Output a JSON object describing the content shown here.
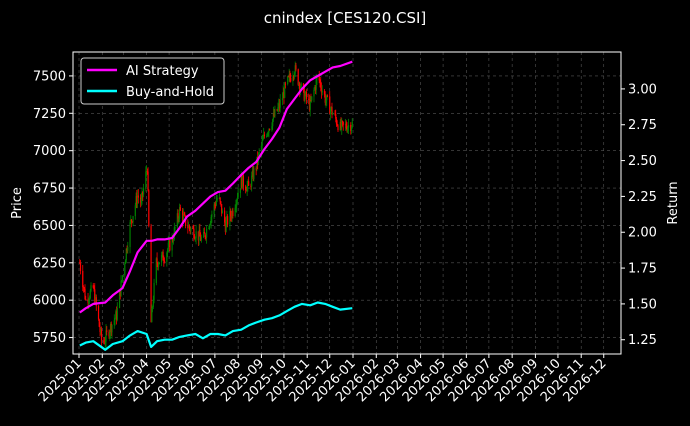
{
  "chart_data": {
    "type": "line",
    "title": "cnindex [CES120.CSI]",
    "ylabel_left": "Price",
    "ylabel_right": "Return",
    "xlabel": "",
    "ylim_left": [
      5640,
      7660
    ],
    "ylim_right": [
      1.1505,
      3.2575
    ],
    "xlim": [
      "2024-12-24",
      "2026-12-24"
    ],
    "x_ticks": [
      "2025-01",
      "2025-02",
      "2025-03",
      "2025-04",
      "2025-05",
      "2025-06",
      "2025-07",
      "2025-08",
      "2025-09",
      "2025-10",
      "2025-11",
      "2025-12",
      "2026-01",
      "2026-02",
      "2026-03",
      "2026-04",
      "2026-05",
      "2026-06",
      "2026-07",
      "2026-08",
      "2026-09",
      "2026-10",
      "2026-11",
      "2026-12"
    ],
    "y_ticks_left": [
      5750,
      6000,
      6250,
      6500,
      6750,
      7000,
      7250,
      7500
    ],
    "y_ticks_right": [
      1.25,
      1.5,
      1.75,
      2.0,
      2.25,
      2.5,
      2.75,
      3.0
    ],
    "grid": true,
    "legend_position": "top-left",
    "colors": {
      "background": "#000000",
      "ai_strategy": "#ff00ff",
      "buy_and_hold": "#00ffff",
      "candle_up": "#008000",
      "candle_down": "#ff0000",
      "grid": "#555555"
    },
    "series": [
      {
        "name": "AI Strategy",
        "axis": "right",
        "points": [
          [
            "2025-01-02",
            1.44
          ],
          [
            "2025-01-10",
            1.47
          ],
          [
            "2025-01-20",
            1.5
          ],
          [
            "2025-02-05",
            1.51
          ],
          [
            "2025-02-15",
            1.56
          ],
          [
            "2025-02-28",
            1.61
          ],
          [
            "2025-03-10",
            1.73
          ],
          [
            "2025-03-20",
            1.86
          ],
          [
            "2025-04-01",
            1.94
          ],
          [
            "2025-04-08",
            1.94
          ],
          [
            "2025-04-15",
            1.95
          ],
          [
            "2025-04-25",
            1.95
          ],
          [
            "2025-05-05",
            1.96
          ],
          [
            "2025-05-15",
            2.03
          ],
          [
            "2025-05-25",
            2.11
          ],
          [
            "2025-06-05",
            2.15
          ],
          [
            "2025-06-15",
            2.2
          ],
          [
            "2025-06-25",
            2.25
          ],
          [
            "2025-07-05",
            2.28
          ],
          [
            "2025-07-15",
            2.29
          ],
          [
            "2025-07-25",
            2.34
          ],
          [
            "2025-08-05",
            2.4
          ],
          [
            "2025-08-15",
            2.45
          ],
          [
            "2025-08-25",
            2.49
          ],
          [
            "2025-09-05",
            2.58
          ],
          [
            "2025-09-15",
            2.65
          ],
          [
            "2025-09-25",
            2.73
          ],
          [
            "2025-10-05",
            2.86
          ],
          [
            "2025-10-15",
            2.93
          ],
          [
            "2025-10-25",
            3.0
          ],
          [
            "2025-11-05",
            3.06
          ],
          [
            "2025-11-15",
            3.09
          ],
          [
            "2025-11-25",
            3.12
          ],
          [
            "2025-12-05",
            3.15
          ],
          [
            "2025-12-15",
            3.16
          ],
          [
            "2025-12-31",
            3.19
          ]
        ]
      },
      {
        "name": "Buy-and-Hold",
        "axis": "right",
        "points": [
          [
            "2025-01-02",
            1.21
          ],
          [
            "2025-01-10",
            1.23
          ],
          [
            "2025-01-20",
            1.24
          ],
          [
            "2025-02-05",
            1.18
          ],
          [
            "2025-02-15",
            1.22
          ],
          [
            "2025-02-28",
            1.24
          ],
          [
            "2025-03-10",
            1.28
          ],
          [
            "2025-03-20",
            1.31
          ],
          [
            "2025-04-01",
            1.29
          ],
          [
            "2025-04-07",
            1.2
          ],
          [
            "2025-04-15",
            1.24
          ],
          [
            "2025-04-25",
            1.25
          ],
          [
            "2025-05-05",
            1.25
          ],
          [
            "2025-05-15",
            1.27
          ],
          [
            "2025-05-25",
            1.28
          ],
          [
            "2025-06-05",
            1.29
          ],
          [
            "2025-06-15",
            1.26
          ],
          [
            "2025-06-25",
            1.29
          ],
          [
            "2025-07-05",
            1.29
          ],
          [
            "2025-07-15",
            1.28
          ],
          [
            "2025-07-25",
            1.31
          ],
          [
            "2025-08-05",
            1.32
          ],
          [
            "2025-08-15",
            1.35
          ],
          [
            "2025-08-25",
            1.37
          ],
          [
            "2025-09-05",
            1.39
          ],
          [
            "2025-09-15",
            1.4
          ],
          [
            "2025-09-25",
            1.42
          ],
          [
            "2025-10-05",
            1.45
          ],
          [
            "2025-10-15",
            1.48
          ],
          [
            "2025-10-25",
            1.5
          ],
          [
            "2025-11-05",
            1.49
          ],
          [
            "2025-11-15",
            1.51
          ],
          [
            "2025-11-25",
            1.5
          ],
          [
            "2025-12-05",
            1.48
          ],
          [
            "2025-12-15",
            1.46
          ],
          [
            "2025-12-31",
            1.47
          ]
        ]
      },
      {
        "name": "Price",
        "axis": "left",
        "type": "candlestick",
        "points": [
          [
            "2025-01-02",
            6250
          ],
          [
            "2025-01-10",
            6000
          ],
          [
            "2025-01-20",
            6080
          ],
          [
            "2025-02-01",
            5700
          ],
          [
            "2025-02-10",
            5800
          ],
          [
            "2025-02-20",
            5900
          ],
          [
            "2025-03-01",
            6200
          ],
          [
            "2025-03-10",
            6500
          ],
          [
            "2025-03-20",
            6700
          ],
          [
            "2025-03-25",
            6650
          ],
          [
            "2025-04-02",
            6900
          ],
          [
            "2025-04-07",
            5850
          ],
          [
            "2025-04-14",
            6250
          ],
          [
            "2025-04-25",
            6300
          ],
          [
            "2025-05-05",
            6400
          ],
          [
            "2025-05-15",
            6600
          ],
          [
            "2025-05-25",
            6500
          ],
          [
            "2025-06-05",
            6450
          ],
          [
            "2025-06-15",
            6400
          ],
          [
            "2025-06-25",
            6550
          ],
          [
            "2025-07-05",
            6700
          ],
          [
            "2025-07-15",
            6500
          ],
          [
            "2025-07-25",
            6600
          ],
          [
            "2025-08-05",
            6800
          ],
          [
            "2025-08-15",
            6750
          ],
          [
            "2025-08-25",
            6900
          ],
          [
            "2025-09-05",
            7100
          ],
          [
            "2025-09-15",
            7200
          ],
          [
            "2025-09-25",
            7300
          ],
          [
            "2025-10-05",
            7450
          ],
          [
            "2025-10-15",
            7550
          ],
          [
            "2025-10-25",
            7400
          ],
          [
            "2025-11-05",
            7300
          ],
          [
            "2025-11-15",
            7500
          ],
          [
            "2025-11-25",
            7350
          ],
          [
            "2025-12-05",
            7250
          ],
          [
            "2025-12-15",
            7150
          ],
          [
            "2025-12-31",
            7180
          ]
        ]
      }
    ]
  }
}
